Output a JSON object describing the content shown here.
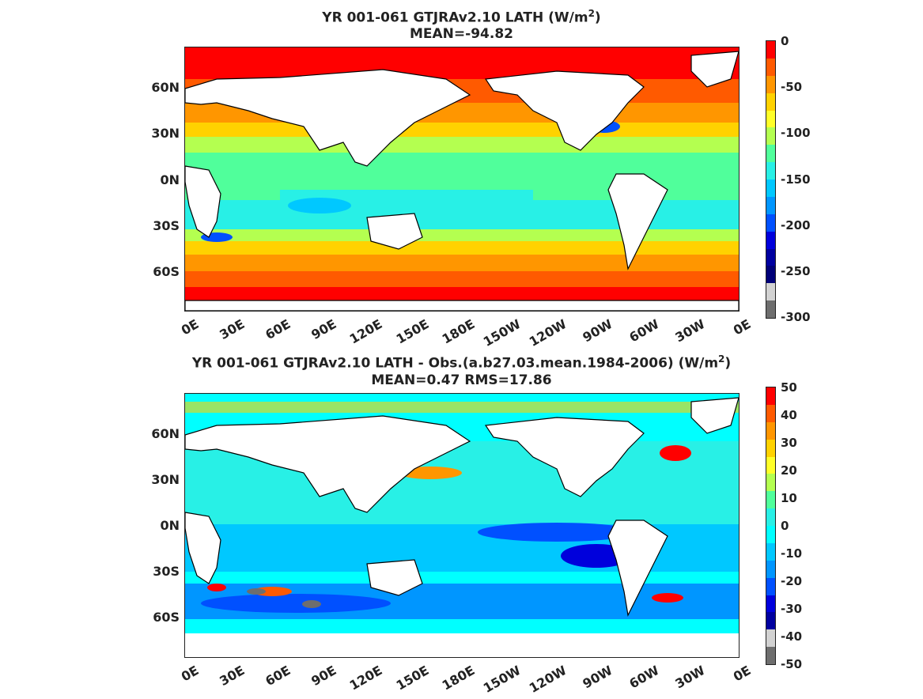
{
  "panels": [
    {
      "title_line1": "YR 001-061 GTJRAv2.10  LATH (W/m",
      "title_sup": "2",
      "title_line1_end": ")",
      "title_line2": "MEAN=-94.82",
      "lat_labels": [
        "60N",
        "30N",
        "0N",
        "30S",
        "60S"
      ],
      "lon_labels": [
        "0E",
        "30E",
        "60E",
        "90E",
        "120E",
        "150E",
        "180E",
        "150W",
        "120W",
        "90W",
        "60W",
        "30W",
        "0E"
      ],
      "colorbar_ticks": [
        "0",
        "-50",
        "-100",
        "-150",
        "-200",
        "-250",
        "-300"
      ],
      "colors": [
        "#ff0000",
        "#ff5a00",
        "#ff9600",
        "#ffd200",
        "#ffff28",
        "#b4ff50",
        "#50ff9b",
        "#28f0e6",
        "#00c8ff",
        "#0096ff",
        "#0050ff",
        "#0000dc",
        "#0000a0",
        "#000078",
        "#d2d2d2",
        "#6e6e6e"
      ]
    },
    {
      "title_line1": "YR 001-061 GTJRAv2.10 LATH - Obs.(a.b27.03.mean.1984-2006) (W/m",
      "title_sup": "2",
      "title_line1_end": ")",
      "title_line2": "MEAN=0.47 RMS=17.86",
      "lat_labels": [
        "60N",
        "30N",
        "0N",
        "30S",
        "60S"
      ],
      "lon_labels": [
        "0E",
        "30E",
        "60E",
        "90E",
        "120E",
        "150E",
        "180E",
        "150W",
        "120W",
        "90W",
        "60W",
        "30W",
        "0E"
      ],
      "colorbar_ticks": [
        "50",
        "40",
        "30",
        "20",
        "10",
        "0",
        "-10",
        "-20",
        "-30",
        "-40",
        "-50"
      ],
      "colors": [
        "#ff0000",
        "#ff5a00",
        "#ff9600",
        "#ffd200",
        "#ffff28",
        "#b4ff50",
        "#50ff9b",
        "#28f0e6",
        "#00ffff",
        "#00c8ff",
        "#0096ff",
        "#0050ff",
        "#0000dc",
        "#0000a0",
        "#d2d2d2",
        "#6e6e6e"
      ]
    }
  ]
}
